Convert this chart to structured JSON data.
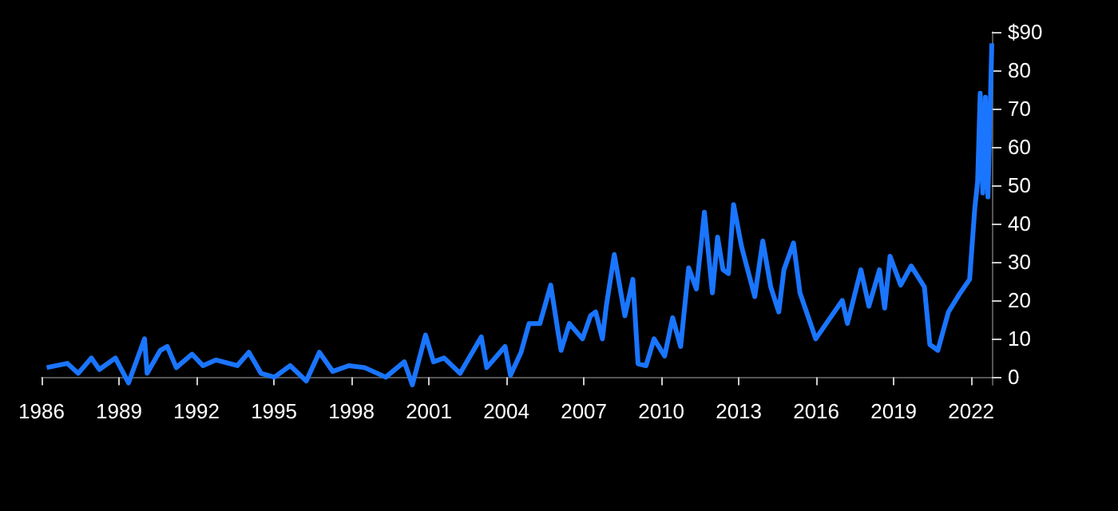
{
  "chart_data": {
    "type": "line",
    "marker": "none",
    "color": "#1a75ff",
    "x": [
      1986.2,
      1987.0,
      1987.42,
      1987.93,
      1988.24,
      1988.86,
      1989.37,
      1989.99,
      1990.09,
      1990.6,
      1990.87,
      1991.22,
      1991.83,
      1992.25,
      1992.76,
      1993.58,
      1994.03,
      1994.5,
      1995.02,
      1995.63,
      1996.25,
      1996.76,
      1997.28,
      1997.9,
      1998.51,
      1999.33,
      2000.05,
      2000.36,
      2000.87,
      2001.18,
      2001.59,
      2002.21,
      2003.03,
      2003.24,
      2003.95,
      2004.16,
      2004.57,
      2004.88,
      2005.3,
      2005.72,
      2006.02,
      2006.12,
      2006.44,
      2006.95,
      2007.26,
      2007.46,
      2007.72,
      2007.87,
      2008.18,
      2008.59,
      2008.9,
      2009.1,
      2009.41,
      2009.72,
      2010.13,
      2010.44,
      2010.75,
      2011.06,
      2011.36,
      2011.67,
      2011.98,
      2012.18,
      2012.39,
      2012.6,
      2012.8,
      2013.11,
      2013.62,
      2013.93,
      2014.24,
      2014.55,
      2014.75,
      2015.12,
      2015.37,
      2015.98,
      2016.39,
      2017.01,
      2017.21,
      2017.73,
      2018.04,
      2018.45,
      2018.65,
      2018.86,
      2019.27,
      2019.68,
      2020.19,
      2020.4,
      2020.71,
      2021.12,
      2021.53,
      2021.94,
      2022.14,
      2022.25,
      2022.35,
      2022.45,
      2022.55,
      2022.65,
      2022.8
    ],
    "values": [
      2.5,
      3.6,
      1,
      5,
      2,
      5,
      -1.5,
      10,
      1,
      7,
      8,
      2.5,
      6,
      3,
      4.5,
      3,
      6.5,
      1,
      0,
      3,
      -1,
      6.5,
      1.5,
      3,
      2.5,
      0,
      4,
      -2,
      11,
      4,
      5,
      1,
      10.5,
      2.5,
      8,
      0.5,
      6.5,
      14,
      14,
      24,
      11,
      7,
      14,
      10,
      16,
      17,
      10,
      18.5,
      32,
      16,
      25.5,
      3.5,
      3,
      10,
      5.5,
      15.5,
      8,
      28.5,
      23,
      43,
      22,
      36.5,
      28,
      27,
      45,
      34,
      21,
      35.5,
      23.5,
      17,
      28,
      35,
      22,
      10,
      14,
      20,
      14,
      28,
      18.5,
      28,
      18,
      31.5,
      24,
      29,
      23.5,
      8.5,
      7,
      17,
      21.5,
      25.5,
      44,
      51,
      74,
      48,
      73,
      47,
      87
    ],
    "xlim": [
      1986,
      2022.8
    ],
    "xticks": [
      1986,
      1989,
      1992,
      1995,
      1998,
      2001,
      2004,
      2007,
      2010,
      2013,
      2016,
      2019,
      2022
    ],
    "ylim": [
      -2,
      90
    ],
    "yticks": [
      0,
      10,
      20,
      30,
      40,
      50,
      60,
      70,
      80,
      {
        "value": 90,
        "label": "$90"
      }
    ]
  }
}
